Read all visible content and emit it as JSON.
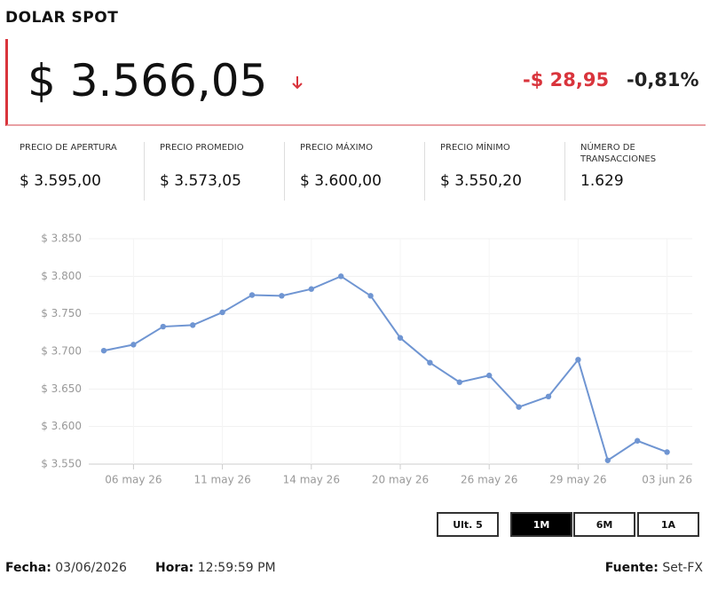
{
  "header": {
    "title": "DOLAR SPOT",
    "price": "$ 3.566,05",
    "change": "-$ 28,95",
    "change_pct": "-0,81%"
  },
  "stats": [
    {
      "label": "Precio de apertura",
      "value": "$ 3.595,00"
    },
    {
      "label": "Precio promedio",
      "value": "$ 3.573,05"
    },
    {
      "label": "Precio máximo",
      "value": "$ 3.600,00"
    },
    {
      "label": "Precio mínimo",
      "value": "$ 3.550,20"
    },
    {
      "label": "Número de transacciones",
      "value": "1.629"
    }
  ],
  "chart_data": {
    "type": "line",
    "color": "#6f95d2",
    "grid": true,
    "categories": [
      null,
      "06 may 26",
      null,
      null,
      "11 may 26",
      null,
      null,
      "14 may 26",
      null,
      null,
      "20 may 26",
      null,
      null,
      "26 may 26",
      null,
      null,
      "29 may 26",
      null,
      null,
      "03 jun 26"
    ],
    "values": [
      3701,
      3709,
      3733,
      3735,
      3752,
      3775,
      3774,
      3783,
      3800,
      3774,
      3718,
      3685,
      3659,
      3668,
      3626,
      3640,
      3689,
      3555,
      3581,
      3566
    ],
    "ylim": [
      3550,
      3850
    ],
    "yticks": [
      {
        "value": 3550,
        "label": "$ 3.550"
      },
      {
        "value": 3600,
        "label": "$ 3.600"
      },
      {
        "value": 3650,
        "label": "$ 3.650"
      },
      {
        "value": 3700,
        "label": "$ 3.700"
      },
      {
        "value": 3750,
        "label": "$ 3.750"
      },
      {
        "value": 3800,
        "label": "$ 3.800"
      },
      {
        "value": 3850,
        "label": "$ 3.850"
      }
    ]
  },
  "buttons": [
    "Ult. 5",
    "1M",
    "6M",
    "1A"
  ],
  "footer": {
    "date_label": "Fecha:",
    "date": "03/06/2026",
    "time_label": "Hora:",
    "time": "12:59:59 PM",
    "source_label": "Fuente:",
    "source": "Set-FX"
  }
}
